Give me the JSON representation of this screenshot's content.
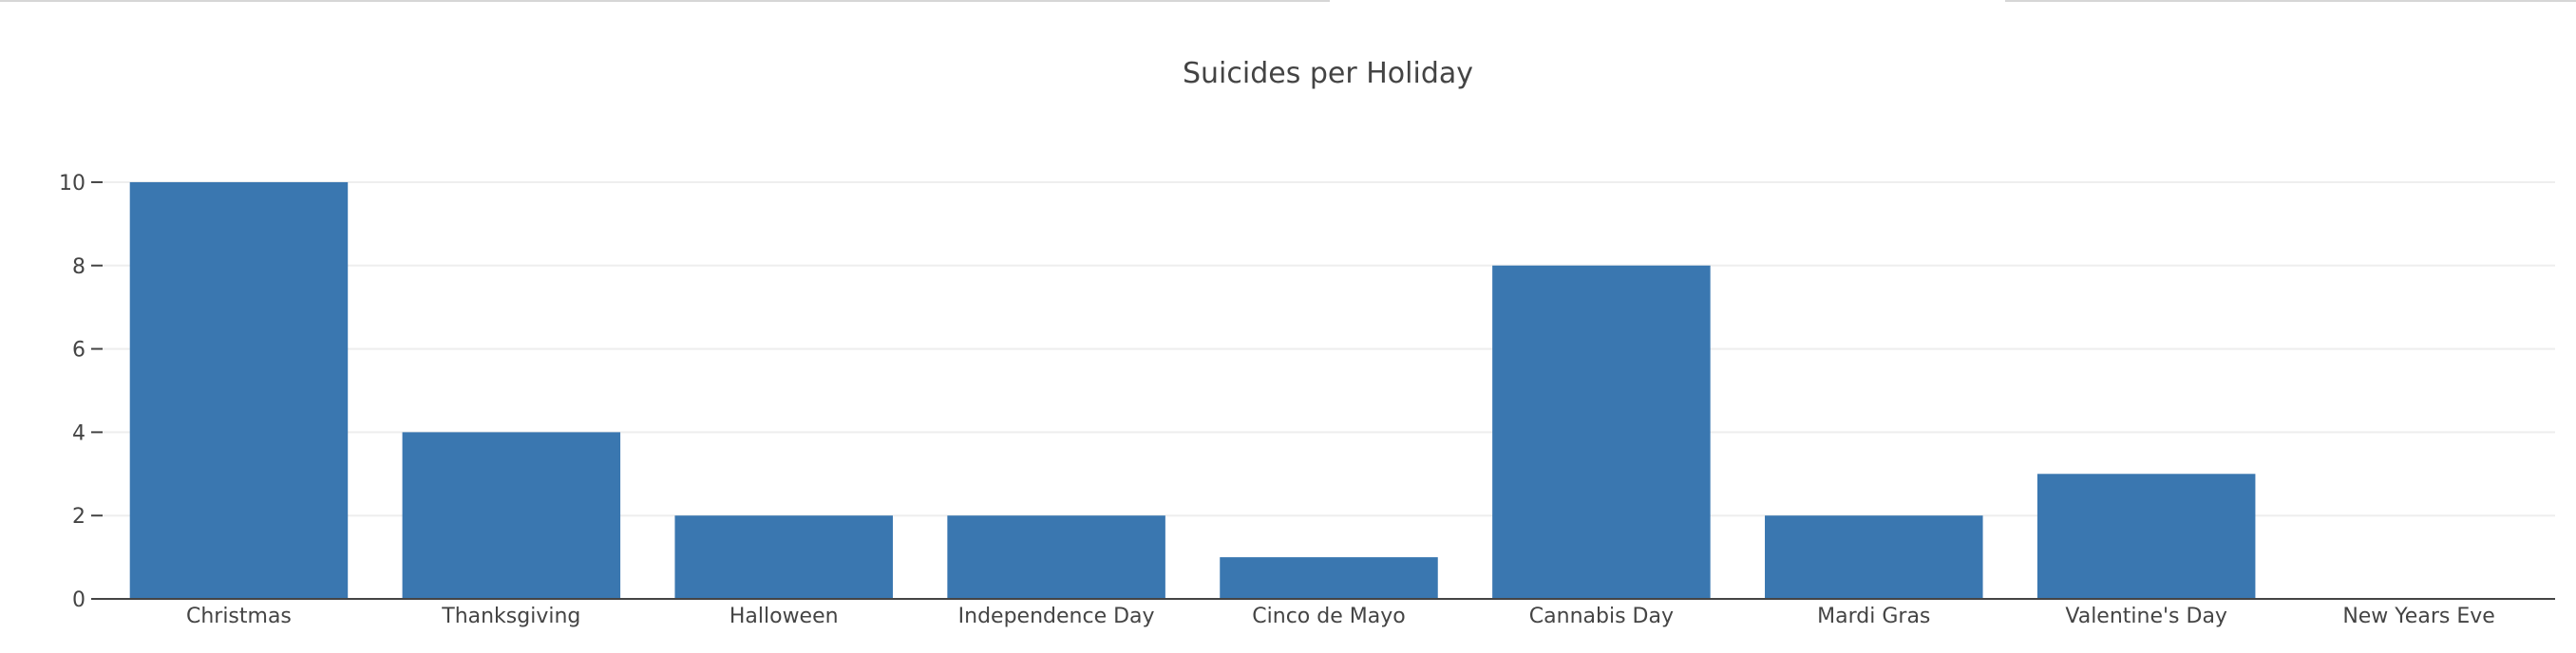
{
  "chart_data": {
    "type": "bar",
    "title": "Suicides per Holiday",
    "categories": [
      "Christmas",
      "Thanksgiving",
      "Halloween",
      "Independence Day",
      "Cinco de Mayo",
      "Cannabis Day",
      "Mardi Gras",
      "Valentine's Day",
      "New Years Eve"
    ],
    "values": [
      10,
      4,
      2,
      2,
      1,
      8,
      2,
      3,
      0
    ],
    "xlabel": "",
    "ylabel": "",
    "ylim": [
      0,
      10.5
    ],
    "yticks": [
      0,
      2,
      4,
      6,
      8,
      10
    ],
    "grid": true,
    "legend": "none",
    "bar_color": "#3a77b0"
  }
}
